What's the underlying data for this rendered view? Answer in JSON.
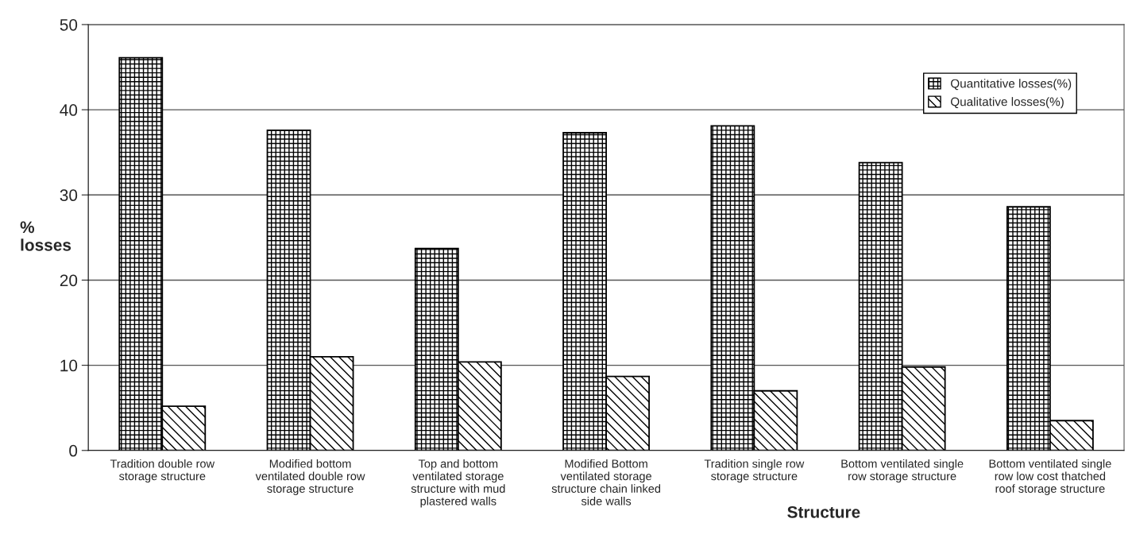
{
  "chart_data": {
    "type": "bar",
    "categories": [
      "Tradition double row storage structure",
      "Modified bottom ventilated double row storage structure",
      "Top and bottom ventilated storage structure with mud plastered walls",
      "Modified Bottom ventilated storage structure chain linked side walls",
      "Tradition single row storage structure",
      "Bottom ventilated single row storage structure",
      "Bottom ventilated single row low cost thatched roof storage structure"
    ],
    "series": [
      {
        "name": "Quantitative losses(%)",
        "color": "#000000",
        "values": [
          46.1,
          37.6,
          23.7,
          37.3,
          38.1,
          33.8,
          28.6
        ]
      },
      {
        "name": "Qualitative losses(%)",
        "color": "#000000",
        "values": [
          5.2,
          11.0,
          10.4,
          8.7,
          7.0,
          9.8,
          3.5
        ]
      }
    ],
    "xlabel": "Structure",
    "ylabel": "% losses",
    "ylim": [
      0,
      50
    ],
    "yticks": [
      0,
      10,
      20,
      30,
      40,
      50
    ],
    "grid": "y",
    "legend": "top right"
  }
}
